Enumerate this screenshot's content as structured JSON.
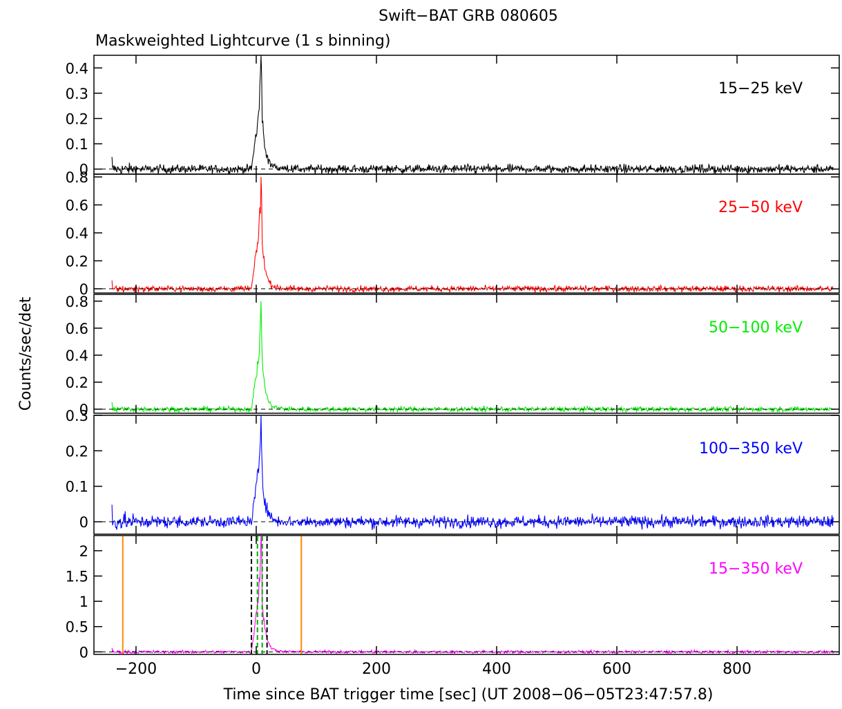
{
  "chart_data": {
    "type": "line",
    "title": "Swift−BAT GRB 080605",
    "subtitle": "Maskweighted Lightcurve (1 s binning)",
    "xlabel": "Time since BAT trigger time [sec] (UT 2008−06−05T23:47:57.8)",
    "ylabel": "Counts/sec/det",
    "xlim": [
      -270,
      970
    ],
    "x_ticks": [
      -200,
      0,
      200,
      400,
      600,
      800
    ],
    "x_tick_labels": [
      "−200",
      "0",
      "200",
      "400",
      "600",
      "800"
    ],
    "burst": {
      "start": -240,
      "end": 960,
      "peak_time": 8,
      "onset": -8,
      "decay_end": 25
    },
    "panels": [
      {
        "band": "15−25 keV",
        "color": "#000000",
        "ylim": [
          -0.02,
          0.45
        ],
        "y_ticks": [
          0,
          0.1,
          0.2,
          0.3,
          0.4
        ],
        "y_tick_labels": [
          "0",
          "0.1",
          "0.2",
          "0.3",
          "0.4"
        ],
        "peak": 0.45,
        "noise": 0.012
      },
      {
        "band": "25−50 keV",
        "color": "#ff0000",
        "ylim": [
          -0.03,
          0.82
        ],
        "y_ticks": [
          0,
          0.2,
          0.4,
          0.6,
          0.8
        ],
        "y_tick_labels": [
          "0",
          "0.2",
          "0.4",
          "0.6",
          "0.8"
        ],
        "peak": 0.8,
        "noise": 0.015
      },
      {
        "band": "50−100 keV",
        "color": "#00ee00",
        "ylim": [
          -0.03,
          0.85
        ],
        "y_ticks": [
          0,
          0.2,
          0.4,
          0.6,
          0.8
        ],
        "y_tick_labels": [
          "0",
          "0.2",
          "0.4",
          "0.6",
          "0.8"
        ],
        "peak": 0.8,
        "noise": 0.013
      },
      {
        "band": "100−350 keV",
        "color": "#0000ff",
        "ylim": [
          -0.035,
          0.3
        ],
        "y_ticks": [
          0,
          0.1,
          0.2,
          0.3
        ],
        "y_tick_labels": [
          "0",
          "0.1",
          "0.2",
          "0.3"
        ],
        "peak": 0.3,
        "noise": 0.012
      },
      {
        "band": "15−350 keV",
        "color": "#ff00ff",
        "ylim": [
          -0.05,
          2.3
        ],
        "y_ticks": [
          0,
          0.5,
          1,
          1.5,
          2
        ],
        "y_tick_labels": [
          "0",
          "0.5",
          "1",
          "1.5",
          "2"
        ],
        "peak": 2.3,
        "noise": 0.02,
        "markers": [
          {
            "x": -222,
            "color": "#ff8800",
            "style": "solid"
          },
          {
            "x": 75,
            "color": "#ff8800",
            "style": "solid"
          },
          {
            "x": -8,
            "color": "#000000",
            "style": "dashed"
          },
          {
            "x": 18,
            "color": "#000000",
            "style": "dashed"
          },
          {
            "x": 2,
            "color": "#00aa00",
            "style": "dashed"
          },
          {
            "x": 10,
            "color": "#00aa00",
            "style": "dashed"
          }
        ]
      }
    ]
  }
}
